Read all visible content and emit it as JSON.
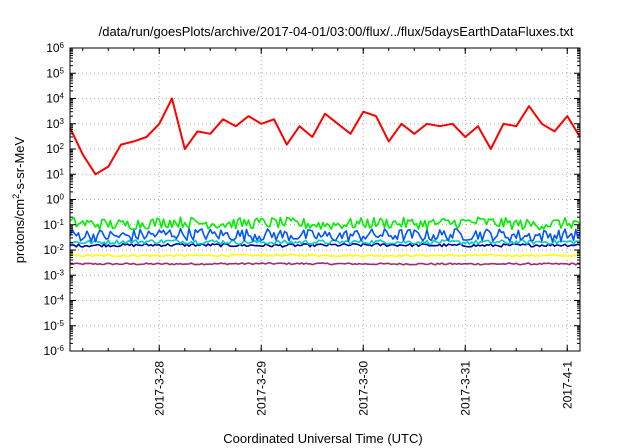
{
  "chart_data": {
    "type": "line",
    "title": "/data/run/goesPlots/archive/2017-04-01/03:00/flux/../flux/5daysEarthDataFluxes.txt",
    "xlabel": "Coordinated Universal Time (UTC)",
    "ylabel_parts": [
      "protons/cm",
      "2",
      "-s-sr-MeV"
    ],
    "yscale": "log",
    "ylim": [
      1e-06,
      1000000.0
    ],
    "xlim": [
      "2017-03-27T03:00",
      "2017-04-01T03:00"
    ],
    "grid": true,
    "legend": "none",
    "y_ticks": [
      {
        "base": "10",
        "exp": "-6",
        "value": 1e-06
      },
      {
        "base": "10",
        "exp": "-5",
        "value": 1e-05
      },
      {
        "base": "10",
        "exp": "-4",
        "value": 0.0001
      },
      {
        "base": "10",
        "exp": "-3",
        "value": 0.001
      },
      {
        "base": "10",
        "exp": "-2",
        "value": 0.01
      },
      {
        "base": "10",
        "exp": "-1",
        "value": 0.1
      },
      {
        "base": "10",
        "exp": "0",
        "value": 1
      },
      {
        "base": "10",
        "exp": "1",
        "value": 10
      },
      {
        "base": "10",
        "exp": "2",
        "value": 100
      },
      {
        "base": "10",
        "exp": "3",
        "value": 1000
      },
      {
        "base": "10",
        "exp": "4",
        "value": 10000
      },
      {
        "base": "10",
        "exp": "5",
        "value": 100000
      },
      {
        "base": "10",
        "exp": "6",
        "value": 1000000
      }
    ],
    "x_ticks": [
      {
        "label": "2017-3-28",
        "value": "2017-03-28T00:00"
      },
      {
        "label": "2017-3-29",
        "value": "2017-03-29T00:00"
      },
      {
        "label": "2017-3-30",
        "value": "2017-03-30T00:00"
      },
      {
        "label": "2017-3-31",
        "value": "2017-03-31T00:00"
      },
      {
        "label": "2017-4-1",
        "value": "2017-04-01T00:00"
      }
    ],
    "series": [
      {
        "color": "#ff0000",
        "x": [
          "2017-03-27T03:00",
          "2017-03-27T06:00",
          "2017-03-27T09:00",
          "2017-03-27T12:00",
          "2017-03-27T15:00",
          "2017-03-27T18:00",
          "2017-03-27T21:00",
          "2017-03-28T00:00",
          "2017-03-28T03:00",
          "2017-03-28T06:00",
          "2017-03-28T09:00",
          "2017-03-28T12:00",
          "2017-03-28T15:00",
          "2017-03-28T18:00",
          "2017-03-28T21:00",
          "2017-03-29T00:00",
          "2017-03-29T03:00",
          "2017-03-29T06:00",
          "2017-03-29T09:00",
          "2017-03-29T12:00",
          "2017-03-29T15:00",
          "2017-03-29T18:00",
          "2017-03-29T21:00",
          "2017-03-30T00:00",
          "2017-03-30T03:00",
          "2017-03-30T06:00",
          "2017-03-30T09:00",
          "2017-03-30T12:00",
          "2017-03-30T15:00",
          "2017-03-30T18:00",
          "2017-03-30T21:00",
          "2017-03-31T00:00",
          "2017-03-31T03:00",
          "2017-03-31T06:00",
          "2017-03-31T09:00",
          "2017-03-31T12:00",
          "2017-03-31T15:00",
          "2017-03-31T18:00",
          "2017-03-31T21:00",
          "2017-04-01T00:00",
          "2017-04-01T03:00"
        ],
        "values": [
          700,
          60,
          10,
          20,
          150,
          200,
          300,
          1000,
          10000,
          100,
          500,
          400,
          1500,
          800,
          2000,
          1000,
          1500,
          150,
          800,
          300,
          2500,
          1000,
          400,
          3000,
          2000,
          200,
          1000,
          400,
          1000,
          800,
          1000,
          300,
          800,
          100,
          1000,
          800,
          5000,
          1000,
          500,
          2000,
          300
        ]
      },
      {
        "color": "#00ee00",
        "x": [
          "2017-03-27T03:00",
          "2017-03-27T15:00",
          "2017-03-28T03:00",
          "2017-03-28T15:00",
          "2017-03-29T03:00",
          "2017-03-29T15:00",
          "2017-03-30T03:00",
          "2017-03-30T15:00",
          "2017-03-31T03:00",
          "2017-03-31T15:00",
          "2017-04-01T03:00"
        ],
        "values": [
          0.12,
          0.1,
          0.13,
          0.11,
          0.12,
          0.1,
          0.12,
          0.11,
          0.13,
          0.1,
          0.12
        ],
        "noise_decades": 0.45
      },
      {
        "color": "#0055ff",
        "x": [
          "2017-03-27T03:00",
          "2017-03-27T15:00",
          "2017-03-28T03:00",
          "2017-03-28T15:00",
          "2017-03-29T03:00",
          "2017-03-29T15:00",
          "2017-03-30T03:00",
          "2017-03-30T15:00",
          "2017-03-31T03:00",
          "2017-03-31T15:00",
          "2017-04-01T03:00"
        ],
        "values": [
          0.04,
          0.035,
          0.045,
          0.04,
          0.04,
          0.035,
          0.04,
          0.038,
          0.042,
          0.036,
          0.04
        ],
        "noise_decades": 0.5
      },
      {
        "color": "#00cccc",
        "x": [
          "2017-03-27T03:00",
          "2017-03-28T03:00",
          "2017-03-29T03:00",
          "2017-03-30T03:00",
          "2017-03-31T03:00",
          "2017-04-01T03:00"
        ],
        "values": [
          0.02,
          0.022,
          0.02,
          0.021,
          0.02,
          0.021
        ],
        "noise_decades": 0.18
      },
      {
        "color": "#000099",
        "x": [
          "2017-03-27T03:00",
          "2017-03-28T03:00",
          "2017-03-29T03:00",
          "2017-03-30T03:00",
          "2017-03-31T03:00",
          "2017-04-01T03:00"
        ],
        "values": [
          0.015,
          0.016,
          0.015,
          0.016,
          0.015,
          0.016
        ],
        "noise_decades": 0.12
      },
      {
        "color": "#ffff00",
        "x": [
          "2017-03-27T03:00",
          "2017-03-28T03:00",
          "2017-03-29T03:00",
          "2017-03-30T03:00",
          "2017-03-31T03:00",
          "2017-04-01T03:00"
        ],
        "values": [
          0.006,
          0.006,
          0.0062,
          0.006,
          0.0061,
          0.006
        ],
        "noise_decades": 0.08
      },
      {
        "color": "#993366",
        "x": [
          "2017-03-27T03:00",
          "2017-03-28T03:00",
          "2017-03-29T03:00",
          "2017-03-30T03:00",
          "2017-03-31T03:00",
          "2017-04-01T03:00"
        ],
        "values": [
          0.0028,
          0.0028,
          0.0029,
          0.0028,
          0.0028,
          0.0028
        ],
        "noise_decades": 0.07
      }
    ]
  }
}
